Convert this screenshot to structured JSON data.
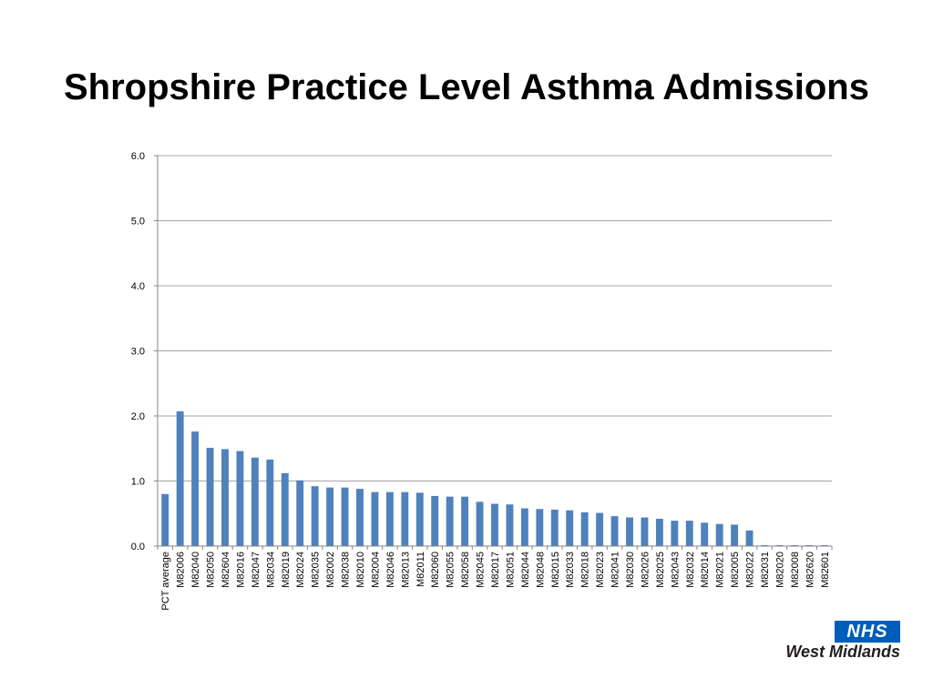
{
  "colors": {
    "bar": "#4F81BD",
    "grid": "#a6a6a6",
    "axis": "#868686",
    "nhs_blue": "#005EB8"
  },
  "logo": {
    "mark": "NHS",
    "org": "West Midlands"
  },
  "chart_data": {
    "type": "bar",
    "title": "Shropshire Practice Level Asthma Admissions",
    "xlabel": "",
    "ylabel": "",
    "ylim": [
      0,
      6
    ],
    "yticks": [
      "0.0",
      "1.0",
      "2.0",
      "3.0",
      "4.0",
      "5.0",
      "6.0"
    ],
    "grid": true,
    "legend": "none",
    "categories": [
      "PCT average",
      "M82006",
      "M82040",
      "M82050",
      "M82604",
      "M82016",
      "M82047",
      "M82034",
      "M82019",
      "M82024",
      "M82035",
      "M82002",
      "M82038",
      "M82010",
      "M82004",
      "M82046",
      "M82013",
      "M82011",
      "M82060",
      "M82055",
      "M82058",
      "M82045",
      "M82017",
      "M82051",
      "M82044",
      "M82048",
      "M82015",
      "M82033",
      "M82018",
      "M82023",
      "M82041",
      "M82030",
      "M82026",
      "M82025",
      "M82043",
      "M82032",
      "M82014",
      "M82021",
      "M82005",
      "M82022",
      "M82031",
      "M82020",
      "M82008",
      "M82620",
      "M82601"
    ],
    "values": [
      0.8,
      2.07,
      1.76,
      1.51,
      1.49,
      1.46,
      1.36,
      1.33,
      1.12,
      1.01,
      0.92,
      0.9,
      0.9,
      0.88,
      0.83,
      0.83,
      0.83,
      0.82,
      0.77,
      0.76,
      0.76,
      0.68,
      0.65,
      0.64,
      0.58,
      0.57,
      0.56,
      0.55,
      0.52,
      0.51,
      0.46,
      0.44,
      0.44,
      0.42,
      0.39,
      0.39,
      0.36,
      0.34,
      0.33,
      0.24,
      0.01,
      0.01,
      0.01,
      0.01,
      0.01
    ]
  }
}
